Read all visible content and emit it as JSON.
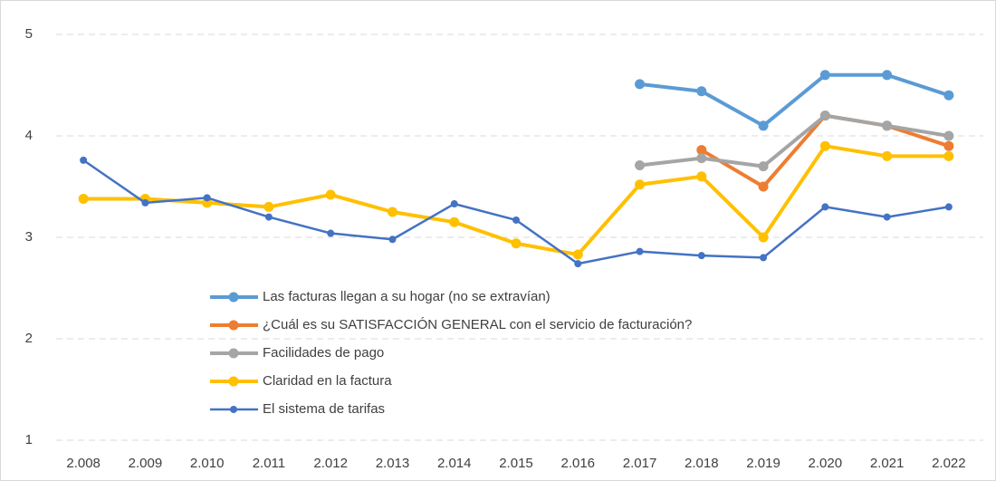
{
  "chart_data": {
    "type": "line",
    "categories": [
      "2.008",
      "2.009",
      "2.010",
      "2.011",
      "2.012",
      "2.013",
      "2.014",
      "2.015",
      "2.016",
      "2.017",
      "2.018",
      "2.019",
      "2.020",
      "2.021",
      "2.022"
    ],
    "series": [
      {
        "name": "Las facturas llegan a su hogar (no se extravían)",
        "color": "#5b9bd5",
        "line_width": 4,
        "values": [
          null,
          null,
          null,
          null,
          null,
          null,
          null,
          null,
          null,
          4.51,
          4.44,
          4.1,
          4.6,
          4.6,
          4.4
        ]
      },
      {
        "name": "¿Cuál es su SATISFACCIÓN GENERAL con el servicio de facturación?",
        "color": "#ed7d31",
        "line_width": 4,
        "values": [
          null,
          null,
          null,
          null,
          null,
          null,
          null,
          null,
          null,
          null,
          3.86,
          3.5,
          4.2,
          4.1,
          3.9
        ]
      },
      {
        "name": "Facilidades de pago",
        "color": "#a5a5a5",
        "line_width": 4,
        "values": [
          null,
          null,
          null,
          null,
          null,
          null,
          null,
          null,
          null,
          3.71,
          3.78,
          3.7,
          4.2,
          4.1,
          4.0
        ]
      },
      {
        "name": "Claridad en la factura",
        "color": "#ffc000",
        "line_width": 4,
        "values": [
          3.38,
          3.38,
          3.34,
          3.3,
          3.42,
          3.25,
          3.15,
          2.94,
          2.83,
          3.52,
          3.6,
          3.0,
          3.9,
          3.8,
          3.8
        ]
      },
      {
        "name": "El sistema de tarifas",
        "color": "#4472c4",
        "line_width": 2.5,
        "values": [
          3.76,
          3.34,
          3.39,
          3.2,
          3.04,
          2.98,
          3.33,
          3.17,
          2.74,
          2.86,
          2.82,
          2.8,
          3.3,
          3.2,
          3.3
        ]
      }
    ],
    "ylim": [
      1,
      5
    ],
    "yticks": [
      1,
      2,
      3,
      4,
      5
    ],
    "grid": true
  }
}
